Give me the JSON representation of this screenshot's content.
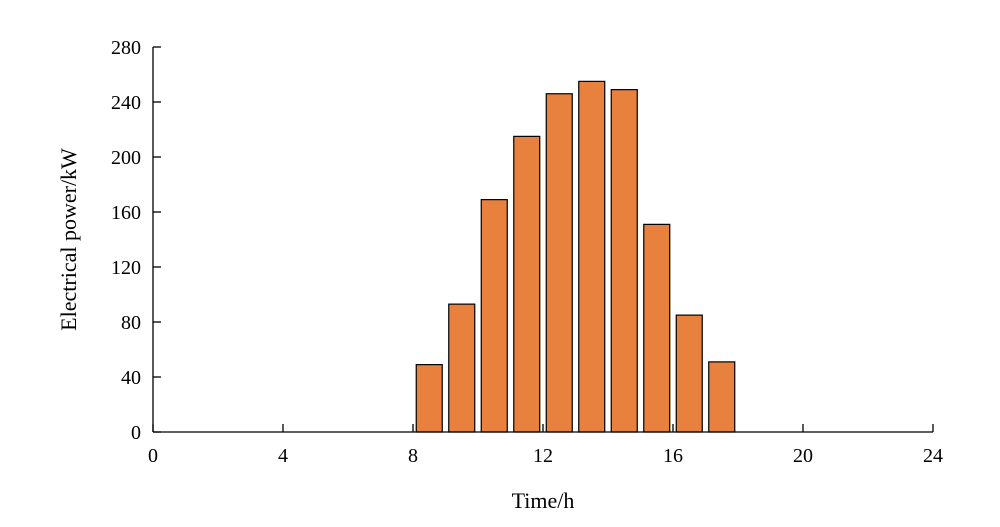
{
  "chart_data": {
    "type": "bar",
    "title": "",
    "xlabel": "Time/h",
    "ylabel": "Electrical power/kW",
    "xlim": [
      0,
      24
    ],
    "ylim": [
      0,
      280
    ],
    "xticks": [
      0,
      4,
      8,
      12,
      16,
      20,
      24
    ],
    "yticks": [
      0,
      40,
      80,
      120,
      160,
      200,
      240,
      280
    ],
    "x": [
      9,
      10,
      11,
      12,
      13,
      14,
      15,
      16,
      17,
      18
    ],
    "values": [
      49,
      93,
      169,
      215,
      246,
      255,
      249,
      151,
      85,
      51
    ],
    "bar_color": "#e8803e",
    "grid": false,
    "legend": "none"
  }
}
